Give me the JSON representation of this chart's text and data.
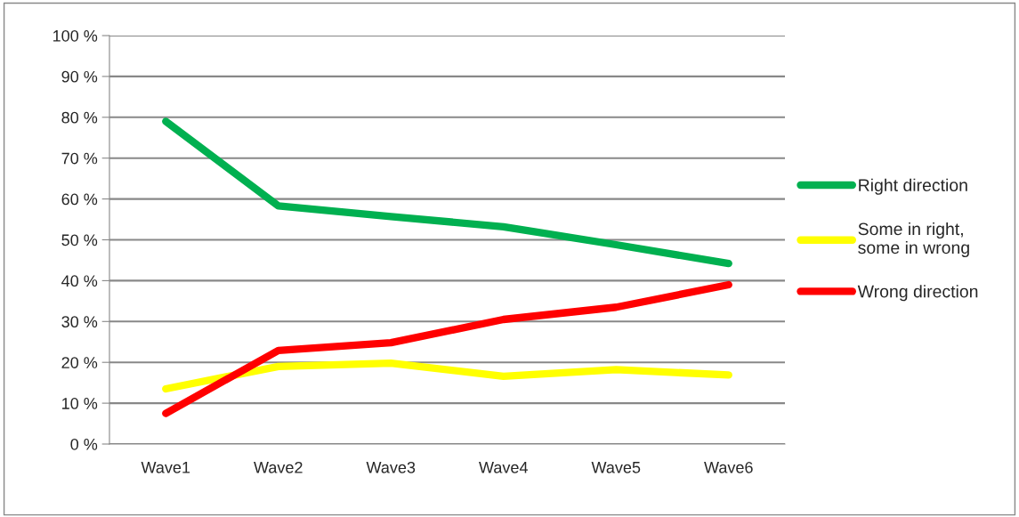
{
  "chart_data": {
    "type": "line",
    "categories": [
      "Wave1",
      "Wave2",
      "Wave3",
      "Wave4",
      "Wave5",
      "Wave6"
    ],
    "series": [
      {
        "name": "Right direction",
        "color": "#00b050",
        "values": [
          79,
          58.3,
          55.7,
          53.2,
          48.8,
          44.2
        ]
      },
      {
        "name": "Some in right, some in wrong",
        "color": "#ffff00",
        "values": [
          13.5,
          19,
          19.8,
          16.6,
          18.2,
          16.9
        ]
      },
      {
        "name": "Wrong direction",
        "color": "#ff0000",
        "values": [
          7.5,
          22.9,
          24.8,
          30.5,
          33.5,
          39
        ]
      }
    ],
    "ylim": [
      0,
      100
    ],
    "yticks": [
      {
        "value": 0,
        "label": "0 %"
      },
      {
        "value": 10,
        "label": "10 %"
      },
      {
        "value": 20,
        "label": "20 %"
      },
      {
        "value": 30,
        "label": "30 %"
      },
      {
        "value": 40,
        "label": "40 %"
      },
      {
        "value": 50,
        "label": "50 %"
      },
      {
        "value": 60,
        "label": "60 %"
      },
      {
        "value": 70,
        "label": "70 %"
      },
      {
        "value": 80,
        "label": "80 %"
      },
      {
        "value": 90,
        "label": "90 %"
      },
      {
        "value": 100,
        "label": "100 %"
      }
    ],
    "grid": "y",
    "legend": "right",
    "marker": "none",
    "line_style": "solid"
  }
}
